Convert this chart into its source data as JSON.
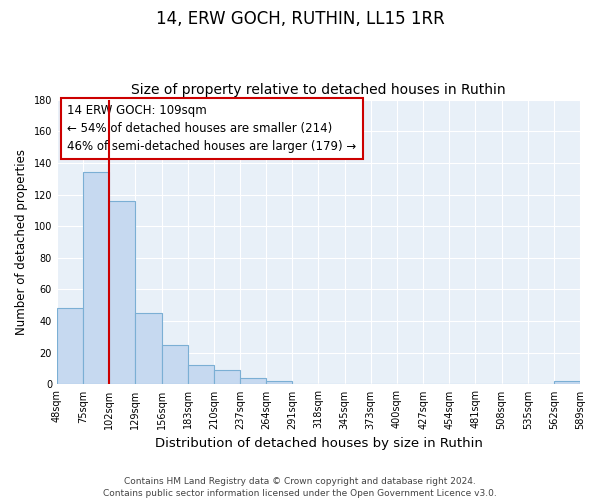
{
  "title": "14, ERW GOCH, RUTHIN, LL15 1RR",
  "subtitle": "Size of property relative to detached houses in Ruthin",
  "xlabel": "Distribution of detached houses by size in Ruthin",
  "ylabel": "Number of detached properties",
  "bar_values": [
    48,
    134,
    116,
    45,
    25,
    12,
    9,
    4,
    2,
    0,
    0,
    0,
    0,
    0,
    0,
    0,
    0,
    0,
    0,
    2
  ],
  "bar_labels": [
    "48sqm",
    "75sqm",
    "102sqm",
    "129sqm",
    "156sqm",
    "183sqm",
    "210sqm",
    "237sqm",
    "264sqm",
    "291sqm",
    "318sqm",
    "345sqm",
    "373sqm",
    "400sqm",
    "427sqm",
    "454sqm",
    "481sqm",
    "508sqm",
    "535sqm",
    "562sqm",
    "589sqm"
  ],
  "bar_color": "#c6d9f0",
  "bar_edge_color": "#7bafd4",
  "plot_bg_color": "#e8f0f8",
  "ylim": [
    0,
    180
  ],
  "yticks": [
    0,
    20,
    40,
    60,
    80,
    100,
    120,
    140,
    160,
    180
  ],
  "property_line_x": 1.5,
  "property_line_color": "#cc0000",
  "annotation_box_text": "14 ERW GOCH: 109sqm\n← 54% of detached houses are smaller (214)\n46% of semi-detached houses are larger (179) →",
  "footer_line1": "Contains HM Land Registry data © Crown copyright and database right 2024.",
  "footer_line2": "Contains public sector information licensed under the Open Government Licence v3.0.",
  "title_fontsize": 12,
  "subtitle_fontsize": 10,
  "xlabel_fontsize": 9.5,
  "ylabel_fontsize": 8.5,
  "annotation_fontsize": 8.5,
  "footer_fontsize": 6.5,
  "tick_fontsize": 7
}
